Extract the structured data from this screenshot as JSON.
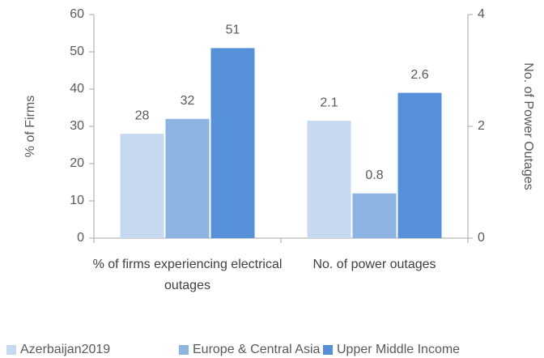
{
  "chart_data": {
    "type": "bar",
    "categories": [
      "% of firms experiencing electrical outages",
      "No. of power outages"
    ],
    "category_axes": [
      "y",
      "y2"
    ],
    "series": [
      {
        "name": "Azerbaijan2019",
        "color": "#c6d9f1",
        "values": [
          28,
          2.1
        ]
      },
      {
        "name": "Europe & Central Asia",
        "color": "#8db3e2",
        "values": [
          32,
          0.8
        ]
      },
      {
        "name": "Upper Middle Income",
        "color": "#5590d9",
        "values": [
          51,
          2.6
        ]
      }
    ],
    "ylabel": "% of Firms",
    "y2label": "No. of Power Outages",
    "ylim": [
      0,
      60
    ],
    "yticks": [
      0,
      10,
      20,
      30,
      40,
      50,
      60
    ],
    "y2lim": [
      0,
      4
    ],
    "y2ticks": [
      0,
      2,
      4
    ],
    "legend": "bottom"
  }
}
